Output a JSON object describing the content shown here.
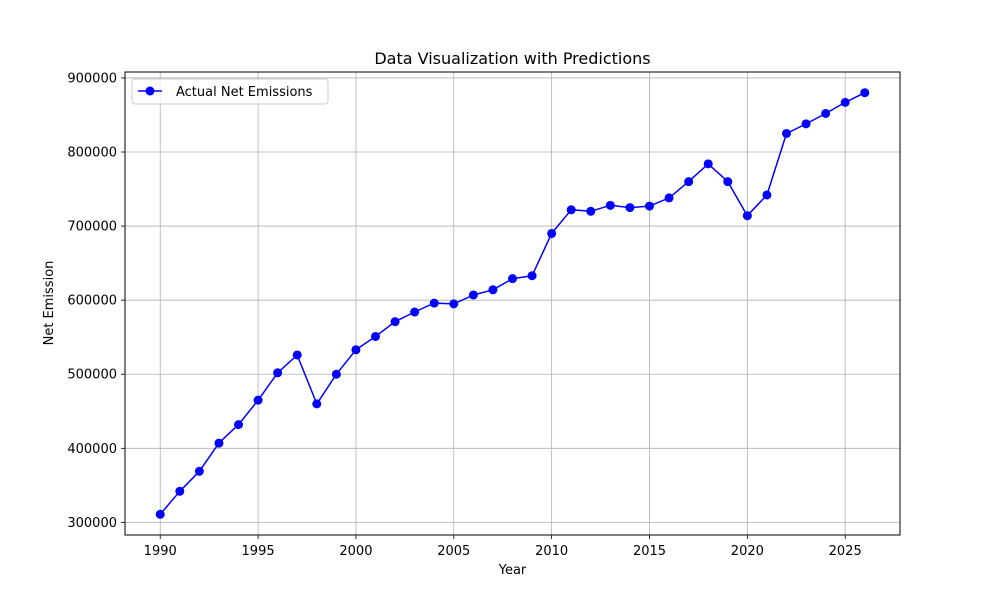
{
  "chart_data": {
    "type": "line",
    "title": "Data Visualization with Predictions",
    "xlabel": "Year",
    "ylabel": "Net Emission",
    "xlim": [
      1988.2,
      2027.8
    ],
    "ylim": [
      283000,
      908000
    ],
    "xticks": [
      1990,
      1995,
      2000,
      2005,
      2010,
      2015,
      2020,
      2025
    ],
    "yticks": [
      300000,
      400000,
      500000,
      600000,
      700000,
      800000,
      900000
    ],
    "grid": true,
    "legend_position": "upper-left",
    "series": [
      {
        "name": "Actual Net Emissions",
        "color": "#0000ff",
        "marker": "circle",
        "x": [
          1990,
          1991,
          1992,
          1993,
          1994,
          1995,
          1996,
          1997,
          1998,
          1999,
          2000,
          2001,
          2002,
          2003,
          2004,
          2005,
          2006,
          2007,
          2008,
          2009,
          2010,
          2011,
          2012,
          2013,
          2014,
          2015,
          2016,
          2017,
          2018,
          2019,
          2020,
          2021,
          2022,
          2023,
          2024,
          2025,
          2026
        ],
        "y": [
          311000,
          342000,
          369000,
          407000,
          432000,
          465000,
          502000,
          526000,
          460000,
          500000,
          533000,
          551000,
          571000,
          584000,
          596000,
          595000,
          607000,
          614000,
          629000,
          633000,
          690000,
          722000,
          720000,
          728000,
          725000,
          727000,
          738000,
          760000,
          784000,
          760000,
          714000,
          742000,
          825000,
          838000,
          852000,
          867000,
          880000
        ]
      }
    ]
  }
}
